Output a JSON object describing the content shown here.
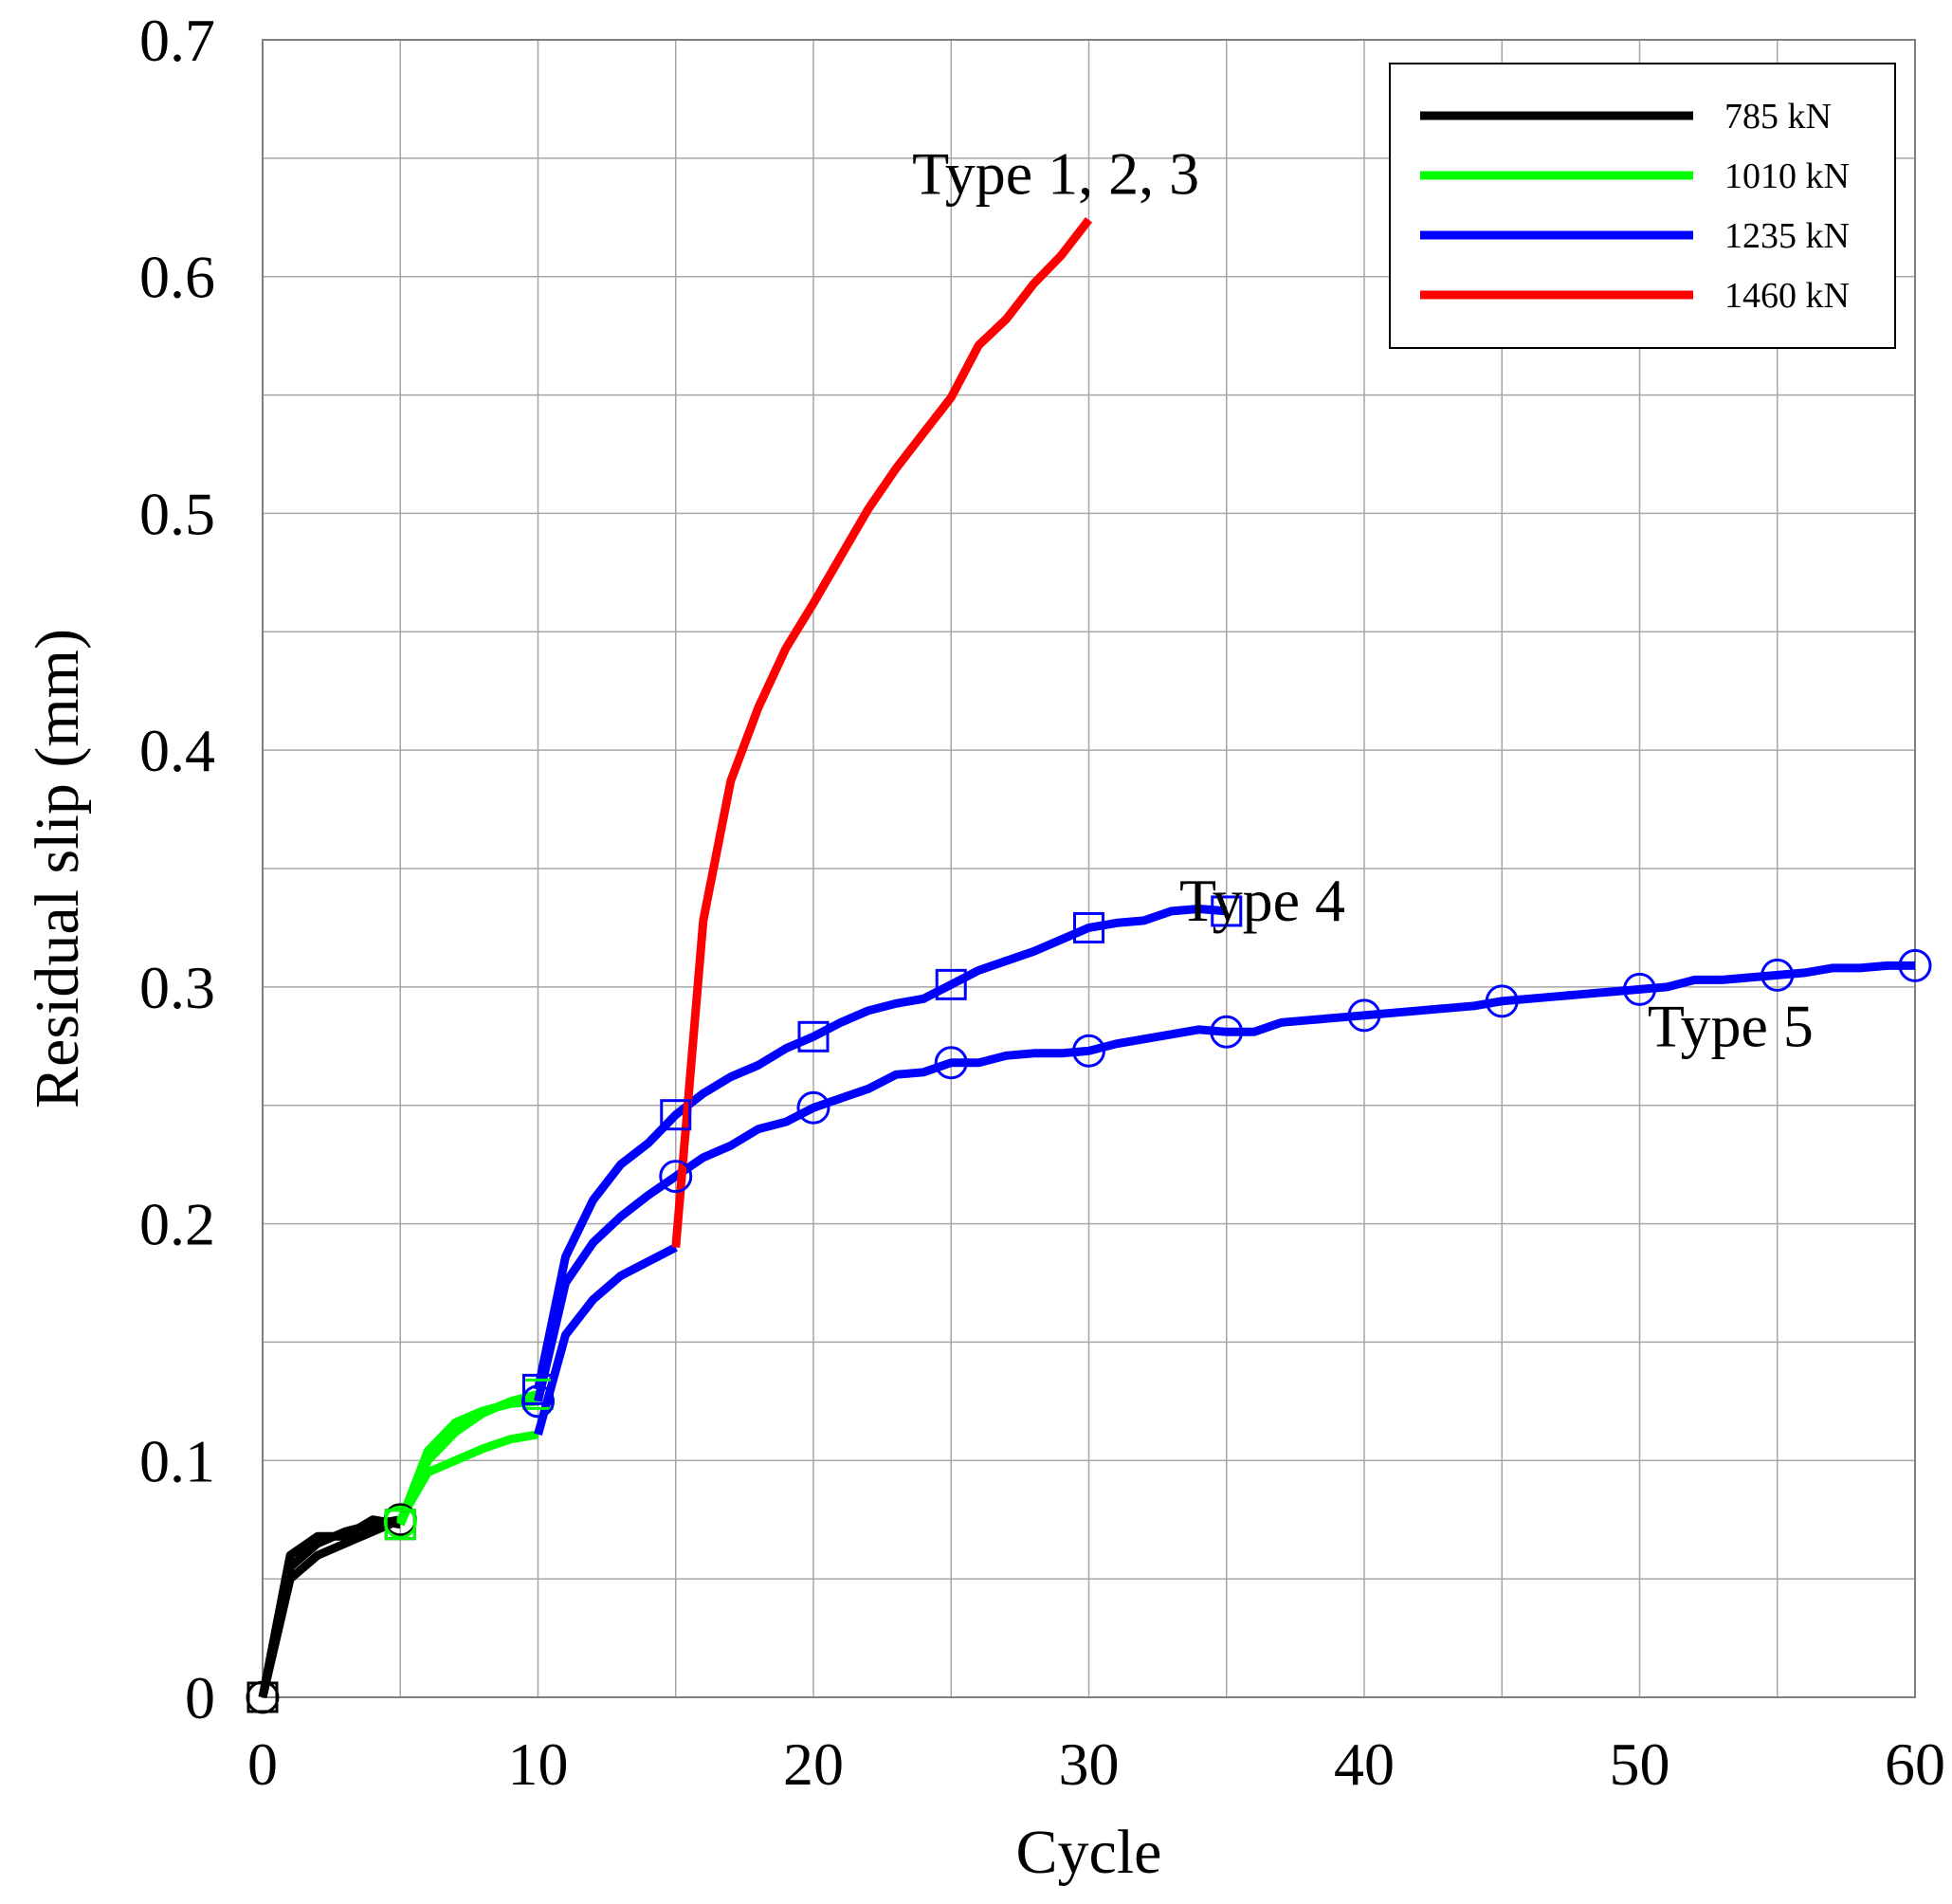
{
  "chart_data": {
    "type": "line",
    "title": "",
    "xlabel": "Cycle",
    "ylabel": "Residual slip (mm)",
    "xlim": [
      0,
      60
    ],
    "ylim": [
      0,
      0.7
    ],
    "xticks": [
      0,
      10,
      20,
      30,
      40,
      50,
      60
    ],
    "xtick_labels": [
      "0",
      "10",
      "20",
      "30",
      "40",
      "50",
      "60"
    ],
    "yticks": [
      0,
      0.1,
      0.2,
      0.3,
      0.4,
      0.5,
      0.6,
      0.7
    ],
    "ytick_labels": [
      "0",
      "0.1",
      "0.2",
      "0.3",
      "0.4",
      "0.5",
      "0.6",
      "0.7"
    ],
    "grid": true,
    "legend_position": "top-right",
    "legend": [
      {
        "label": "785 kN",
        "color": "#000000"
      },
      {
        "label": "1010 kN",
        "color": "#00ff00"
      },
      {
        "label": "1235 kN",
        "color": "#0000ff"
      },
      {
        "label": "1460 kN",
        "color": "#ff0000"
      }
    ],
    "annotations": [
      {
        "text": "Type 1, 2, 3",
        "x": 28.8,
        "y": 0.635
      },
      {
        "text": "Type 4",
        "x": 36.3,
        "y": 0.328
      },
      {
        "text": "Type 5",
        "x": 53.3,
        "y": 0.275
      }
    ],
    "series": [
      {
        "name": "785 kN (Type 1, 2, 3)",
        "load": "785 kN",
        "color": "#000000",
        "marker": "",
        "x": [
          0,
          1,
          2,
          3,
          4,
          5
        ],
        "y": [
          0,
          0.05,
          0.06,
          0.065,
          0.07,
          0.075
        ]
      },
      {
        "name": "785 kN (Type 4)",
        "load": "785 kN",
        "color": "#000000",
        "marker": "square",
        "x": [
          0,
          1,
          2,
          3,
          4,
          5
        ],
        "y": [
          0,
          0.06,
          0.068,
          0.068,
          0.075,
          0.073
        ]
      },
      {
        "name": "785 kN (Type 5)",
        "load": "785 kN",
        "color": "#000000",
        "marker": "circle",
        "x": [
          0,
          1,
          2,
          3,
          4,
          5
        ],
        "y": [
          0,
          0.055,
          0.065,
          0.07,
          0.073,
          0.075
        ]
      },
      {
        "name": "1010 kN (Type 1, 2, 3)",
        "load": "1010 kN",
        "color": "#00ff00",
        "marker": "",
        "x": [
          5,
          6,
          7,
          8,
          9,
          10
        ],
        "y": [
          0.075,
          0.095,
          0.1,
          0.105,
          0.109,
          0.111
        ]
      },
      {
        "name": "1010 kN (Type 4)",
        "load": "1010 kN",
        "color": "#00ff00",
        "marker": "square",
        "x": [
          5,
          6,
          7,
          8,
          9,
          10
        ],
        "y": [
          0.073,
          0.1,
          0.112,
          0.12,
          0.125,
          0.128
        ]
      },
      {
        "name": "1010 kN (Type 5)",
        "load": "1010 kN",
        "color": "#00ff00",
        "marker": "circle",
        "x": [
          5,
          6,
          7,
          8,
          9,
          10
        ],
        "y": [
          0.074,
          0.104,
          0.116,
          0.121,
          0.124,
          0.125
        ]
      },
      {
        "name": "1235 kN (Type 1, 2, 3)",
        "load": "1235 kN",
        "color": "#0000ff",
        "marker": "",
        "x": [
          10,
          11,
          12,
          13,
          14,
          15
        ],
        "y": [
          0.111,
          0.153,
          0.168,
          0.178,
          0.184,
          0.19
        ]
      },
      {
        "name": "1235 kN (Type 4)",
        "load": "1235 kN",
        "color": "#0000ff",
        "marker": "square",
        "x": [
          10,
          11,
          12,
          13,
          14,
          15,
          16,
          17,
          18,
          19,
          20,
          21,
          22,
          23,
          24,
          25,
          26,
          27,
          28,
          29,
          30,
          31,
          32,
          33,
          34,
          35
        ],
        "y": [
          0.13,
          0.186,
          0.21,
          0.225,
          0.234,
          0.246,
          0.255,
          0.262,
          0.267,
          0.274,
          0.279,
          0.285,
          0.29,
          0.293,
          0.295,
          0.301,
          0.307,
          0.311,
          0.315,
          0.32,
          0.325,
          0.327,
          0.328,
          0.332,
          0.333,
          0.332
        ]
      },
      {
        "name": "1235 kN (Type 5)",
        "load": "1235 kN",
        "color": "#0000ff",
        "marker": "circle",
        "x": [
          10,
          11,
          12,
          13,
          14,
          15,
          16,
          17,
          18,
          19,
          20,
          21,
          22,
          23,
          24,
          25,
          26,
          27,
          28,
          29,
          30,
          31,
          32,
          33,
          34,
          35,
          36,
          37,
          38,
          39,
          40,
          41,
          42,
          43,
          44,
          45,
          46,
          47,
          48,
          49,
          50,
          51,
          52,
          53,
          54,
          55,
          56,
          57,
          58,
          59,
          60
        ],
        "y": [
          0.125,
          0.175,
          0.192,
          0.203,
          0.212,
          0.22,
          0.228,
          0.233,
          0.24,
          0.243,
          0.249,
          0.253,
          0.257,
          0.263,
          0.264,
          0.268,
          0.268,
          0.271,
          0.272,
          0.272,
          0.273,
          0.276,
          0.278,
          0.28,
          0.282,
          0.281,
          0.281,
          0.285,
          0.286,
          0.287,
          0.288,
          0.289,
          0.29,
          0.291,
          0.292,
          0.294,
          0.295,
          0.296,
          0.297,
          0.298,
          0.299,
          0.3,
          0.303,
          0.303,
          0.304,
          0.305,
          0.306,
          0.308,
          0.308,
          0.309,
          0.309
        ]
      },
      {
        "name": "1460 kN (Type 1, 2, 3)",
        "load": "1460 kN",
        "color": "#ff0000",
        "marker": "",
        "x": [
          15,
          16,
          17,
          18,
          19,
          20,
          21,
          22,
          23,
          24,
          25,
          26,
          27,
          28,
          29,
          30
        ],
        "y": [
          0.19,
          0.328,
          0.387,
          0.418,
          0.443,
          0.462,
          0.482,
          0.502,
          0.519,
          0.534,
          0.549,
          0.571,
          0.582,
          0.597,
          0.609,
          0.624
        ]
      }
    ]
  }
}
